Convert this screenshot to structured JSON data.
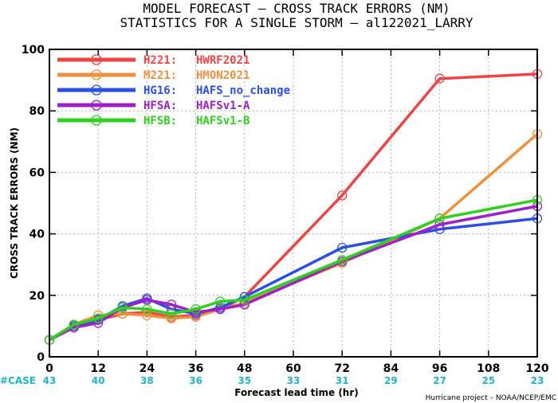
{
  "chart_data": {
    "type": "line",
    "title": "MODEL FORECAST – CROSS TRACK ERRORS (NM)",
    "subtitle": "STATISTICS FOR A SINGLE STORM – al122021_LARRY",
    "xlabel": "Forecast lead time (hr)",
    "ylabel": "CROSS TRACK ERRORS (NM)",
    "xlim": [
      0,
      120
    ],
    "ylim": [
      0,
      100
    ],
    "xticks": [
      0,
      12,
      24,
      36,
      48,
      60,
      72,
      84,
      96,
      108,
      120
    ],
    "yticks": [
      0,
      20,
      40,
      60,
      80,
      100
    ],
    "grid": true,
    "legend_position": "top-left",
    "case_label": "#CASE",
    "cases": [
      {
        "x": 0,
        "n": "43"
      },
      {
        "x": 12,
        "n": "40"
      },
      {
        "x": 24,
        "n": "38"
      },
      {
        "x": 36,
        "n": "36"
      },
      {
        "x": 48,
        "n": "35"
      },
      {
        "x": 60,
        "n": "33"
      },
      {
        "x": 72,
        "n": "31"
      },
      {
        "x": 84,
        "n": "29"
      },
      {
        "x": 96,
        "n": "27"
      },
      {
        "x": 108,
        "n": "25"
      },
      {
        "x": 120,
        "n": "23"
      }
    ],
    "credit": "Hurricane project – NOAA/NCEP/EMC",
    "series": [
      {
        "code": "H221:",
        "name": "HWRF2021",
        "color": "#ee4444",
        "points": [
          [
            0,
            5.5
          ],
          [
            6,
            10
          ],
          [
            12,
            12
          ],
          [
            18,
            14
          ],
          [
            24,
            14.5
          ],
          [
            30,
            13
          ],
          [
            36,
            13.5
          ],
          [
            42,
            15.5
          ],
          [
            48,
            19.5
          ],
          [
            72,
            52.5
          ],
          [
            96,
            90.5
          ],
          [
            120,
            92
          ]
        ]
      },
      {
        "code": "M221:",
        "name": "HMON2021",
        "color": "#f0903c",
        "points": [
          [
            0,
            5.5
          ],
          [
            6,
            10.5
          ],
          [
            12,
            13.5
          ],
          [
            18,
            14
          ],
          [
            24,
            13.5
          ],
          [
            30,
            12.5
          ],
          [
            36,
            13
          ],
          [
            42,
            15.5
          ],
          [
            48,
            17.5
          ],
          [
            72,
            30.5
          ],
          [
            96,
            45
          ],
          [
            120,
            72.5
          ]
        ]
      },
      {
        "code": "HG16:",
        "name": "HAFS_no_change",
        "color": "#2b4fe6",
        "points": [
          [
            0,
            5.5
          ],
          [
            6,
            10
          ],
          [
            12,
            12
          ],
          [
            18,
            16.5
          ],
          [
            24,
            19
          ],
          [
            30,
            15.5
          ],
          [
            36,
            14
          ],
          [
            42,
            16
          ],
          [
            48,
            19.5
          ],
          [
            72,
            35.5
          ],
          [
            96,
            41.5
          ],
          [
            120,
            45
          ]
        ]
      },
      {
        "code": "HFSA:",
        "name": "HAFSv1-A",
        "color": "#a020c8",
        "points": [
          [
            0,
            5.5
          ],
          [
            6,
            9.5
          ],
          [
            12,
            11
          ],
          [
            18,
            16
          ],
          [
            24,
            18.5
          ],
          [
            30,
            17
          ],
          [
            36,
            14.5
          ],
          [
            42,
            15.5
          ],
          [
            48,
            17
          ],
          [
            72,
            31
          ],
          [
            96,
            43
          ],
          [
            120,
            49
          ]
        ]
      },
      {
        "code": "HFSB:",
        "name": "HAFSv1-B",
        "color": "#2ed21e",
        "points": [
          [
            0,
            5.5
          ],
          [
            6,
            10.5
          ],
          [
            12,
            12.5
          ],
          [
            18,
            16
          ],
          [
            24,
            15.5
          ],
          [
            30,
            14
          ],
          [
            36,
            15.5
          ],
          [
            42,
            18
          ],
          [
            48,
            18.5
          ],
          [
            72,
            31.5
          ],
          [
            96,
            45
          ],
          [
            120,
            51
          ]
        ]
      }
    ]
  }
}
